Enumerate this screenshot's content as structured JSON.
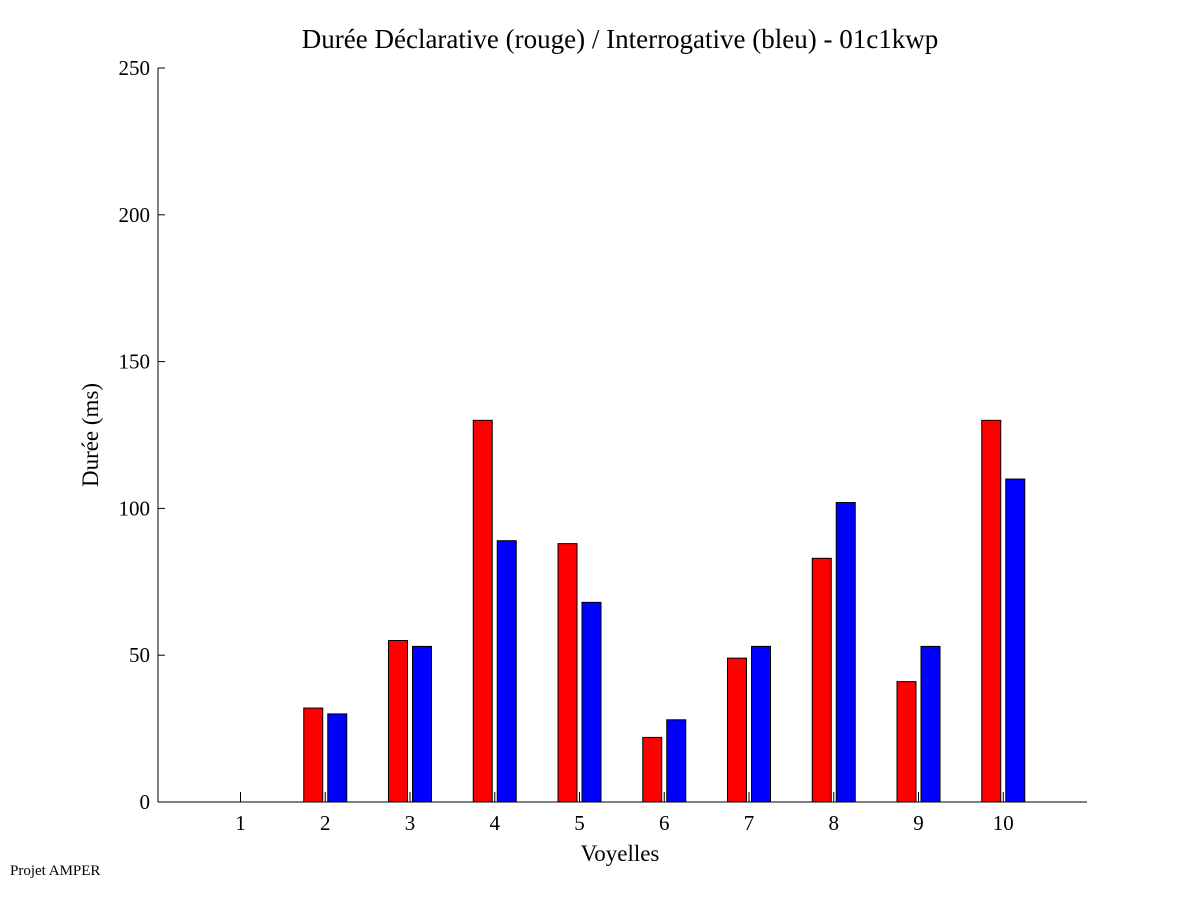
{
  "footer": {
    "credit": "Projet AMPER"
  },
  "chart_data": {
    "type": "bar",
    "title": "Durée Déclarative (rouge) / Interrogative (bleu) - 01c1kwp",
    "xlabel": "Voyelles",
    "ylabel": "Durée (ms)",
    "categories": [
      "1",
      "2",
      "3",
      "4",
      "5",
      "6",
      "7",
      "8",
      "9",
      "10"
    ],
    "ylim": [
      0,
      250
    ],
    "yticks": [
      0,
      50,
      100,
      150,
      200,
      250
    ],
    "grid": false,
    "legend": "none",
    "series": [
      {
        "color": "#ff0000",
        "values": [
          0,
          32,
          55,
          130,
          88,
          22,
          49,
          83,
          41,
          130
        ]
      },
      {
        "color": "#0000ff",
        "values": [
          0,
          30,
          53,
          89,
          68,
          28,
          53,
          102,
          53,
          110
        ]
      }
    ]
  }
}
